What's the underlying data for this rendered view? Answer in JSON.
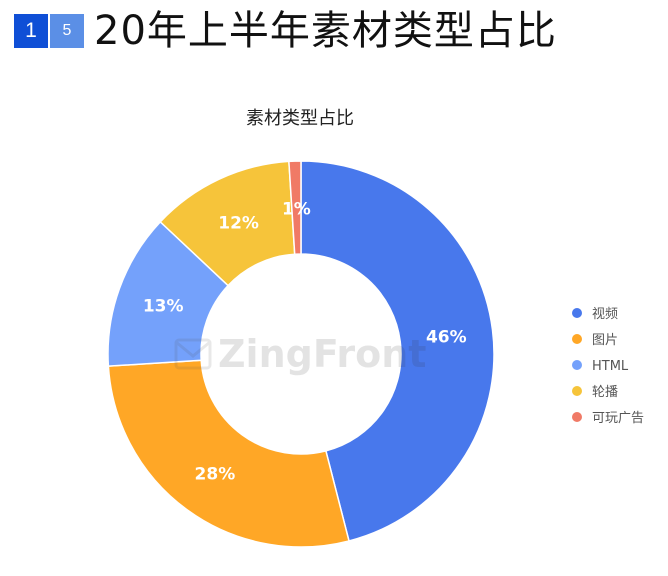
{
  "header": {
    "badge_1": "1",
    "badge_2": "5",
    "title": "20年上半年素材类型占比"
  },
  "watermark": "ZingFront",
  "chart_data": {
    "type": "pie",
    "title": "素材类型占比",
    "donut": true,
    "legend_position": "right",
    "slices": [
      {
        "label": "视频",
        "value": 46,
        "display": "46%",
        "color": "#4878ec"
      },
      {
        "label": "图片",
        "value": 28,
        "display": "28%",
        "color": "#ffa726"
      },
      {
        "label": "HTML",
        "value": 13,
        "display": "13%",
        "color": "#74a1fb"
      },
      {
        "label": "轮播",
        "value": 12,
        "display": "12%",
        "color": "#f6c43a"
      },
      {
        "label": "可玩广告",
        "value": 1,
        "display": "1%",
        "color": "#f07a66"
      }
    ]
  }
}
